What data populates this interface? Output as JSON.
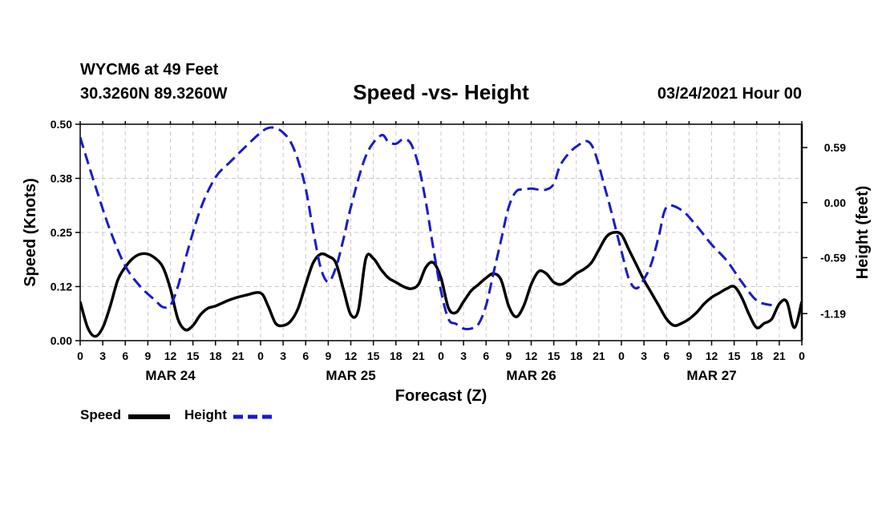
{
  "header": {
    "station": "WYCM6 at 49 Feet",
    "coords": "30.3260N 89.3260W",
    "title": "Speed -vs- Height",
    "forecast_time": "03/24/2021 Hour 00"
  },
  "legend": {
    "speed_label": "Speed",
    "height_label": "Height"
  },
  "colors": {
    "speed": "#000000",
    "height": "#1a1acc",
    "grid": "#c8c8c8"
  },
  "chart_data": {
    "type": "line",
    "title": "Speed -vs- Height",
    "xlabel": "Forecast (Z)",
    "y_left_label": "Speed (Knots)",
    "y_right_label": "Height (feet)",
    "x_range": [
      0,
      96
    ],
    "y_left_range": [
      0,
      0.5
    ],
    "y_right_range": [
      -1.48,
      0.84
    ],
    "x_ticks": [
      0,
      3,
      6,
      9,
      12,
      15,
      18,
      21,
      24,
      27,
      30,
      33,
      36,
      39,
      42,
      45,
      48,
      51,
      54,
      57,
      60,
      63,
      66,
      69,
      72,
      75,
      78,
      81,
      84,
      87,
      90,
      93,
      96
    ],
    "x_tick_labels": [
      "0",
      "3",
      "6",
      "9",
      "12",
      "15",
      "18",
      "21",
      "0",
      "3",
      "6",
      "9",
      "12",
      "15",
      "18",
      "21",
      "0",
      "3",
      "6",
      "9",
      "12",
      "15",
      "18",
      "21",
      "0",
      "3",
      "6",
      "9",
      "12",
      "15",
      "18",
      "21",
      "0"
    ],
    "day_labels": [
      {
        "x": 12,
        "label": "MAR 24"
      },
      {
        "x": 36,
        "label": "MAR 25"
      },
      {
        "x": 60,
        "label": "MAR 26"
      },
      {
        "x": 84,
        "label": "MAR 27"
      }
    ],
    "y_left_ticks": [
      0,
      0.125,
      0.25,
      0.375,
      0.5
    ],
    "y_left_tick_labels": [
      "0.00",
      "0.12",
      "0.25",
      "0.38",
      "0.50"
    ],
    "y_right_ticks": [
      0.59,
      0.0,
      -0.59,
      -1.19
    ],
    "y_right_tick_labels": [
      "0.59",
      "0.00",
      "-0.59",
      "-1.19"
    ],
    "grid": true,
    "series": [
      {
        "name": "Speed",
        "axis": "left",
        "style": "solid",
        "x": [
          0,
          1,
          2,
          3,
          4,
          5,
          6,
          7,
          8,
          9,
          10,
          11,
          12,
          13,
          14,
          15,
          16,
          17,
          18,
          20,
          22,
          24,
          25,
          26,
          27,
          28,
          29,
          30,
          31,
          32,
          33,
          34,
          35,
          36,
          37,
          38,
          39,
          40,
          41,
          42,
          43,
          44,
          45,
          46,
          47,
          48,
          49,
          50,
          51,
          52,
          53,
          54,
          55,
          56,
          57,
          58,
          59,
          60,
          61,
          62,
          63,
          64,
          65,
          66,
          67,
          68,
          69,
          70,
          71,
          72,
          73,
          74,
          75,
          76,
          77,
          78,
          79,
          80,
          81,
          82,
          83,
          84,
          85,
          86,
          87,
          88,
          89,
          90,
          91,
          92,
          93,
          94,
          95,
          96
        ],
        "y": [
          0.09,
          0.03,
          0.01,
          0.03,
          0.08,
          0.14,
          0.17,
          0.19,
          0.2,
          0.2,
          0.19,
          0.17,
          0.12,
          0.05,
          0.025,
          0.035,
          0.06,
          0.075,
          0.08,
          0.095,
          0.105,
          0.11,
          0.08,
          0.04,
          0.035,
          0.045,
          0.075,
          0.13,
          0.18,
          0.2,
          0.195,
          0.18,
          0.12,
          0.06,
          0.07,
          0.19,
          0.19,
          0.165,
          0.145,
          0.135,
          0.125,
          0.12,
          0.13,
          0.17,
          0.18,
          0.145,
          0.075,
          0.065,
          0.09,
          0.115,
          0.13,
          0.145,
          0.155,
          0.14,
          0.08,
          0.055,
          0.08,
          0.13,
          0.16,
          0.155,
          0.135,
          0.13,
          0.14,
          0.155,
          0.165,
          0.18,
          0.21,
          0.24,
          0.25,
          0.245,
          0.21,
          0.175,
          0.14,
          0.11,
          0.08,
          0.05,
          0.035,
          0.04,
          0.05,
          0.065,
          0.085,
          0.1,
          0.11,
          0.12,
          0.125,
          0.1,
          0.06,
          0.03,
          0.04,
          0.05,
          0.085,
          0.09,
          0.03,
          0.09
        ]
      },
      {
        "name": "Height",
        "axis": "right",
        "style": "dashed",
        "x": [
          0,
          2,
          4,
          6,
          8,
          10,
          11,
          12,
          13,
          14,
          16,
          18,
          20,
          22,
          24,
          25,
          26,
          27,
          28,
          29,
          30,
          31,
          32,
          33,
          34,
          35,
          36,
          38,
          40,
          41,
          42,
          43,
          44,
          45,
          46,
          47,
          48,
          49,
          50,
          51,
          52,
          53,
          54,
          55,
          56,
          57,
          58,
          59,
          60,
          61,
          62,
          63,
          64,
          66,
          68,
          70,
          72,
          73,
          74,
          75,
          76,
          77,
          78,
          80,
          82,
          84,
          86,
          88,
          90,
          92
        ],
        "y": [
          0.7,
          0.18,
          -0.3,
          -0.68,
          -0.9,
          -1.05,
          -1.12,
          -1.1,
          -0.9,
          -0.6,
          -0.07,
          0.27,
          0.44,
          0.6,
          0.75,
          0.8,
          0.8,
          0.75,
          0.65,
          0.45,
          0.15,
          -0.3,
          -0.7,
          -0.85,
          -0.7,
          -0.4,
          -0.05,
          0.5,
          0.72,
          0.65,
          0.63,
          0.68,
          0.63,
          0.4,
          0.0,
          -0.5,
          -0.95,
          -1.25,
          -1.3,
          -1.35,
          -1.35,
          -1.3,
          -1.1,
          -0.75,
          -0.4,
          -0.05,
          0.12,
          0.14,
          0.15,
          0.14,
          0.14,
          0.2,
          0.42,
          0.6,
          0.62,
          0.1,
          -0.52,
          -0.82,
          -0.92,
          -0.82,
          -0.65,
          -0.35,
          -0.05,
          -0.08,
          -0.25,
          -0.45,
          -0.62,
          -0.85,
          -1.05,
          -1.1
        ]
      }
    ]
  }
}
